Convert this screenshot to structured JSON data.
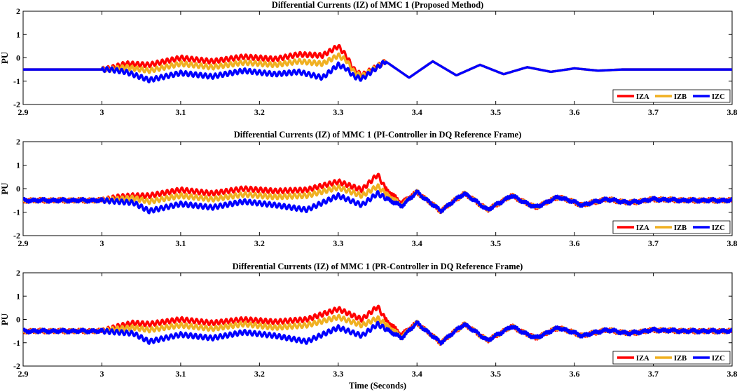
{
  "colors": {
    "IZA": "#ff0000",
    "IZB": "#f0b021",
    "IZC": "#0000ff"
  },
  "chart_data": [
    {
      "type": "line",
      "title": "Differential Currents (IZ) of MMC 1 (Proposed Method)",
      "ylabel": "PU",
      "xlabel": "",
      "xlim": [
        2.9,
        3.8
      ],
      "ylim": [
        -2,
        2
      ],
      "xticks": [
        "2.9",
        "3",
        "3.1",
        "3.2",
        "3.3",
        "3.4",
        "3.5",
        "3.6",
        "3.7",
        "3.8"
      ],
      "yticks": [
        "-2",
        "-1",
        "0",
        "1",
        "2"
      ],
      "legend": {
        "position": "bottom-right",
        "entries": [
          "IZA",
          "IZB",
          "IZC"
        ]
      },
      "x": [
        2.9,
        3.0,
        3.01,
        3.02,
        3.03,
        3.06,
        3.1,
        3.14,
        3.18,
        3.22,
        3.25,
        3.28,
        3.3,
        3.31,
        3.32,
        3.33,
        3.36,
        3.39,
        3.42,
        3.45,
        3.48,
        3.51,
        3.54,
        3.57,
        3.6,
        3.63,
        3.66,
        3.7,
        3.8
      ],
      "series": [
        {
          "name": "IZA",
          "values": [
            -0.5,
            -0.5,
            -0.45,
            -0.35,
            -0.25,
            -0.3,
            0.0,
            -0.15,
            0.05,
            -0.05,
            0.15,
            0.1,
            0.5,
            0.1,
            -0.5,
            -0.75,
            -0.15,
            -0.85,
            -0.15,
            -0.75,
            -0.3,
            -0.7,
            -0.4,
            -0.6,
            -0.45,
            -0.55,
            -0.5,
            -0.5,
            -0.5
          ]
        },
        {
          "name": "IZB",
          "values": [
            -0.5,
            -0.5,
            -0.5,
            -0.45,
            -0.4,
            -0.55,
            -0.25,
            -0.4,
            -0.2,
            -0.3,
            -0.15,
            -0.25,
            0.1,
            -0.1,
            -0.6,
            -0.8,
            -0.15,
            -0.85,
            -0.15,
            -0.75,
            -0.3,
            -0.7,
            -0.4,
            -0.6,
            -0.45,
            -0.55,
            -0.5,
            -0.5,
            -0.5
          ]
        },
        {
          "name": "IZC",
          "values": [
            -0.5,
            -0.5,
            -0.5,
            -0.55,
            -0.6,
            -0.95,
            -0.65,
            -0.8,
            -0.55,
            -0.7,
            -0.6,
            -0.85,
            -0.3,
            -0.45,
            -0.8,
            -0.9,
            -0.15,
            -0.85,
            -0.15,
            -0.75,
            -0.3,
            -0.7,
            -0.4,
            -0.6,
            -0.45,
            -0.55,
            -0.5,
            -0.5,
            -0.5
          ]
        }
      ]
    },
    {
      "type": "line",
      "title": "Differential Currents (IZ) of MMC 1 (PI-Controller in DQ Reference Frame)",
      "ylabel": "PU",
      "xlabel": "",
      "xlim": [
        2.9,
        3.8
      ],
      "ylim": [
        -2,
        2
      ],
      "xticks": [
        "2.9",
        "3",
        "3.1",
        "3.2",
        "3.3",
        "3.4",
        "3.5",
        "3.6",
        "3.7",
        "3.8"
      ],
      "yticks": [
        "-2",
        "-1",
        "0",
        "1",
        "2"
      ],
      "legend": {
        "position": "bottom-right",
        "entries": [
          "IZA",
          "IZB",
          "IZC"
        ]
      },
      "x": [
        2.9,
        3.0,
        3.02,
        3.04,
        3.06,
        3.1,
        3.14,
        3.18,
        3.22,
        3.26,
        3.3,
        3.33,
        3.35,
        3.36,
        3.38,
        3.4,
        3.43,
        3.46,
        3.49,
        3.52,
        3.55,
        3.58,
        3.61,
        3.64,
        3.67,
        3.7,
        3.74,
        3.8
      ],
      "series": [
        {
          "name": "IZA",
          "values": [
            -0.5,
            -0.5,
            -0.35,
            -0.3,
            -0.3,
            -0.05,
            -0.2,
            0.0,
            -0.1,
            -0.05,
            0.3,
            -0.05,
            0.6,
            0.0,
            -0.6,
            -0.15,
            -0.95,
            -0.2,
            -0.9,
            -0.3,
            -0.8,
            -0.35,
            -0.7,
            -0.45,
            -0.6,
            -0.45,
            -0.5,
            -0.5
          ]
        },
        {
          "name": "IZB",
          "values": [
            -0.5,
            -0.5,
            -0.45,
            -0.4,
            -0.55,
            -0.3,
            -0.45,
            -0.25,
            -0.35,
            -0.3,
            0.05,
            -0.3,
            0.1,
            -0.2,
            -0.7,
            -0.15,
            -0.95,
            -0.2,
            -0.9,
            -0.3,
            -0.8,
            -0.35,
            -0.7,
            -0.45,
            -0.6,
            -0.45,
            -0.5,
            -0.5
          ]
        },
        {
          "name": "IZC",
          "values": [
            -0.5,
            -0.5,
            -0.55,
            -0.6,
            -0.95,
            -0.65,
            -0.8,
            -0.55,
            -0.7,
            -0.9,
            -0.3,
            -0.7,
            -0.2,
            -0.4,
            -0.75,
            -0.15,
            -0.95,
            -0.2,
            -0.9,
            -0.3,
            -0.8,
            -0.35,
            -0.7,
            -0.45,
            -0.6,
            -0.45,
            -0.5,
            -0.5
          ]
        }
      ]
    },
    {
      "type": "line",
      "title": "Differential Currents (IZ) of MMC 1 (PR-Controller in DQ Reference Frame)",
      "ylabel": "PU",
      "xlabel": "Time (Seconds)",
      "xlim": [
        2.9,
        3.8
      ],
      "ylim": [
        -2,
        2
      ],
      "xticks": [
        "2.9",
        "3",
        "3.1",
        "3.2",
        "3.3",
        "3.4",
        "3.5",
        "3.6",
        "3.7",
        "3.8"
      ],
      "yticks": [
        "-2",
        "-1",
        "0",
        "1",
        "2"
      ],
      "legend": {
        "position": "bottom-right",
        "entries": [
          "IZA",
          "IZB",
          "IZC"
        ]
      },
      "x": [
        2.9,
        3.0,
        3.02,
        3.04,
        3.06,
        3.1,
        3.14,
        3.18,
        3.22,
        3.26,
        3.3,
        3.33,
        3.35,
        3.36,
        3.38,
        3.4,
        3.43,
        3.46,
        3.49,
        3.52,
        3.55,
        3.58,
        3.61,
        3.64,
        3.67,
        3.7,
        3.74,
        3.8
      ],
      "series": [
        {
          "name": "IZA",
          "values": [
            -0.5,
            -0.5,
            -0.3,
            -0.15,
            -0.2,
            0.0,
            -0.15,
            0.0,
            -0.1,
            0.0,
            0.45,
            0.0,
            0.55,
            0.0,
            -0.65,
            -0.15,
            -1.0,
            -0.2,
            -0.9,
            -0.3,
            -0.8,
            -0.35,
            -0.7,
            -0.45,
            -0.6,
            -0.45,
            -0.5,
            -0.5
          ]
        },
        {
          "name": "IZB",
          "values": [
            -0.5,
            -0.5,
            -0.4,
            -0.35,
            -0.45,
            -0.25,
            -0.4,
            -0.2,
            -0.35,
            -0.25,
            0.1,
            -0.25,
            0.05,
            -0.2,
            -0.75,
            -0.15,
            -1.0,
            -0.2,
            -0.9,
            -0.3,
            -0.8,
            -0.35,
            -0.7,
            -0.45,
            -0.6,
            -0.45,
            -0.5,
            -0.5
          ]
        },
        {
          "name": "IZC",
          "values": [
            -0.5,
            -0.5,
            -0.55,
            -0.6,
            -0.95,
            -0.65,
            -0.8,
            -0.55,
            -0.7,
            -0.95,
            -0.35,
            -0.7,
            -0.2,
            -0.4,
            -0.8,
            -0.15,
            -1.0,
            -0.2,
            -0.9,
            -0.3,
            -0.8,
            -0.35,
            -0.7,
            -0.45,
            -0.6,
            -0.45,
            -0.5,
            -0.5
          ]
        }
      ]
    }
  ]
}
